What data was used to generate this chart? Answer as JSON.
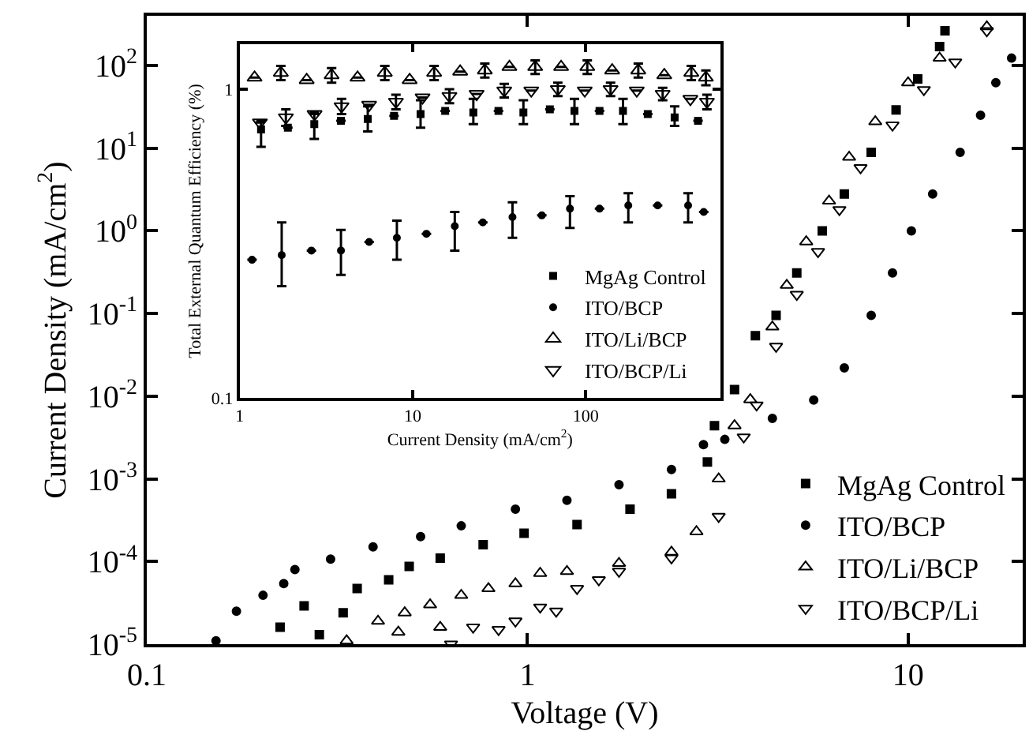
{
  "chart_data": [
    {
      "type": "scatter",
      "xlabel": "Voltage (V)",
      "ylabel": "Current Density (mA/cm$^{2}$)",
      "log": "xy",
      "xlim": [
        0.1,
        20
      ],
      "ylim": [
        1e-05,
        400
      ],
      "xticks": [
        0.1,
        1,
        10
      ],
      "yticks": [
        {
          "value": 1e-05,
          "label": "10$^{-5}$"
        },
        {
          "value": 0.0001,
          "label": "10$^{-4}$"
        },
        {
          "value": 0.001,
          "label": "10$^{-3}$"
        },
        {
          "value": 0.01,
          "label": "10$^{-2}$"
        },
        {
          "value": 0.1,
          "label": "10$^{-1}$"
        },
        {
          "value": 1,
          "label": "10$^{0}$"
        },
        {
          "value": 10,
          "label": "10$^{1}$"
        },
        {
          "value": 100,
          "label": "10$^{2}$"
        }
      ],
      "legend": "bottom right",
      "series": [
        {
          "name": "MgAg Control",
          "color": "#000000",
          "marker": "square",
          "x": [
            0.224,
            0.259,
            0.284,
            0.328,
            0.357,
            0.432,
            0.489,
            0.59,
            0.765,
            0.98,
            1.35,
            1.86,
            2.39,
            2.97,
            3.1,
            3.5,
            3.97,
            4.5,
            5.1,
            5.95,
            6.8,
            8.0,
            9.3,
            10.6,
            12.1,
            12.5
          ],
          "values": [
            1.6e-05,
            2.9e-05,
            1.3e-05,
            2.4e-05,
            4.7e-05,
            6e-05,
            8.7e-05,
            0.00011,
            0.00016,
            0.00022,
            0.00028,
            0.00043,
            0.00066,
            0.0016,
            0.0044,
            0.012,
            0.054,
            0.095,
            0.31,
            1.0,
            2.8,
            8.9,
            29,
            69,
            170,
            263
          ]
        },
        {
          "name": "ITO/BCP",
          "color": "#000000",
          "marker": "circle",
          "x": [
            0.152,
            0.172,
            0.202,
            0.229,
            0.245,
            0.304,
            0.393,
            0.524,
            0.67,
            0.93,
            1.27,
            1.74,
            2.39,
            2.9,
            3.3,
            4.4,
            5.65,
            6.8,
            8.0,
            9.1,
            10.2,
            11.6,
            13.7,
            15.5,
            17.0,
            18.7
          ],
          "values": [
            1.1e-05,
            2.5e-05,
            3.9e-05,
            5.4e-05,
            8e-05,
            0.000107,
            0.00015,
            0.0002,
            0.00027,
            0.00043,
            0.00055,
            0.00085,
            0.0013,
            0.0026,
            0.003,
            0.0054,
            0.009,
            0.022,
            0.095,
            0.31,
            1.0,
            2.8,
            8.9,
            25,
            62,
            123
          ]
        },
        {
          "name": "ITO/Li/BCP",
          "color": "#000000",
          "marker": "triangle",
          "x": [
            0.335,
            0.405,
            0.458,
            0.476,
            0.555,
            0.59,
            0.67,
            0.79,
            0.93,
            1.08,
            1.27,
            1.74,
            2.39,
            2.78,
            3.18,
            3.5,
            3.85,
            4.4,
            4.8,
            5.4,
            6.2,
            7.0,
            8.2,
            10.0,
            12.1,
            16.1
          ],
          "values": [
            1.1e-05,
            1.9e-05,
            1.4e-05,
            2.4e-05,
            3e-05,
            1.6e-05,
            3.9e-05,
            4.7e-05,
            5.4e-05,
            7.2e-05,
            7.6e-05,
            9.5e-05,
            0.00013,
            0.00023,
            0.001,
            0.0044,
            0.0091,
            0.069,
            0.22,
            0.74,
            2.3,
            7.8,
            21,
            62,
            123,
            295
          ]
        },
        {
          "name": "ITO/BCP/Li",
          "color": "#000000",
          "marker": "triangle-down",
          "x": [
            0.63,
            0.72,
            0.84,
            0.93,
            1.08,
            1.19,
            1.35,
            1.54,
            1.74,
            2.39,
            3.18,
            3.7,
            4.0,
            4.5,
            5.1,
            5.8,
            6.6,
            7.5,
            9.1,
            11.0,
            13.3,
            16.1
          ],
          "values": [
            1e-05,
            1.6e-05,
            1.5e-05,
            1.9e-05,
            2.8e-05,
            2.5e-05,
            4.7e-05,
            6e-05,
            7.6e-05,
            0.00011,
            0.00035,
            0.0032,
            0.0078,
            0.04,
            0.17,
            0.56,
            1.8,
            5.8,
            19,
            51,
            110,
            263
          ]
        }
      ]
    },
    {
      "type": "scatter",
      "xlabel": "Current Density (mA/cm$^{2}$)",
      "ylabel": "Total External Quantum Efficiency (%)",
      "log": "xy",
      "xlim": [
        1,
        600
      ],
      "ylim": [
        0.1,
        1.4
      ],
      "xticks": [
        1,
        10,
        100
      ],
      "yticks": [
        0.1,
        1
      ],
      "legend": "bottom right",
      "series": [
        {
          "name": "MgAg Control",
          "color": "#000000",
          "marker": "square",
          "x": [
            1.33,
            1.9,
            2.7,
            3.85,
            5.5,
            7.8,
            11.1,
            15.4,
            22.4,
            31.3,
            43.6,
            62,
            86,
            120,
            164,
            228,
            326,
            445
          ],
          "values": [
            0.74,
            0.75,
            0.77,
            0.79,
            0.8,
            0.82,
            0.83,
            0.85,
            0.84,
            0.85,
            0.84,
            0.86,
            0.85,
            0.85,
            0.85,
            0.83,
            0.81,
            0.79
          ],
          "errors": [
            [
              0.65,
              0.79
            ],
            null,
            [
              0.69,
              0.84
            ],
            null,
            [
              0.73,
              0.88
            ],
            null,
            [
              0.75,
              0.92
            ],
            null,
            [
              0.77,
              0.93
            ],
            null,
            [
              0.77,
              0.92
            ],
            null,
            [
              0.77,
              0.93
            ],
            null,
            [
              0.77,
              0.93
            ],
            null,
            [
              0.76,
              0.88
            ],
            null
          ]
        },
        {
          "name": "ITO/BCP",
          "color": "#000000",
          "marker": "circle",
          "x": [
            1.18,
            1.75,
            2.6,
            3.85,
            5.6,
            8.1,
            12.0,
            17.5,
            25.4,
            37.7,
            55.7,
            81,
            120,
            176,
            260,
            390,
            480
          ],
          "values": [
            0.28,
            0.29,
            0.3,
            0.3,
            0.32,
            0.33,
            0.34,
            0.36,
            0.37,
            0.385,
            0.39,
            0.41,
            0.41,
            0.42,
            0.42,
            0.42,
            0.4
          ],
          "errors": [
            null,
            [
              0.23,
              0.37
            ],
            null,
            [
              0.25,
              0.35
            ],
            null,
            [
              0.28,
              0.375
            ],
            null,
            [
              0.3,
              0.4
            ],
            null,
            [
              0.33,
              0.43
            ],
            null,
            [
              0.355,
              0.45
            ],
            null,
            [
              0.37,
              0.46
            ],
            null,
            [
              0.37,
              0.46
            ],
            null
          ]
        },
        {
          "name": "ITO/Li/BCP",
          "color": "#000000",
          "marker": "triangle",
          "x": [
            1.22,
            1.73,
            2.44,
            3.4,
            4.8,
            6.9,
            9.6,
            13.3,
            18.8,
            26.1,
            36.2,
            51,
            72,
            102,
            142,
            201,
            284,
            407,
            494
          ],
          "values": [
            1.09,
            1.13,
            1.07,
            1.11,
            1.09,
            1.13,
            1.07,
            1.13,
            1.14,
            1.15,
            1.18,
            1.18,
            1.18,
            1.18,
            1.15,
            1.15,
            1.11,
            1.13,
            1.09
          ],
          "errors": [
            null,
            [
              1.07,
              1.19
            ],
            null,
            [
              1.05,
              1.17
            ],
            null,
            [
              1.07,
              1.19
            ],
            null,
            [
              1.07,
              1.19
            ],
            null,
            [
              1.09,
              1.21
            ],
            null,
            [
              1.12,
              1.24
            ],
            null,
            [
              1.12,
              1.24
            ],
            null,
            [
              1.09,
              1.21
            ],
            null,
            [
              1.07,
              1.19
            ],
            [
              1.03,
              1.15
            ]
          ]
        },
        {
          "name": "ITO/BCP/Li",
          "color": "#000000",
          "marker": "triangle-down",
          "x": [
            1.31,
            1.85,
            2.71,
            3.88,
            5.6,
            8.0,
            11.4,
            16.3,
            23.4,
            33.8,
            48.4,
            68.9,
            98.6,
            139,
            197,
            278,
            402,
            501
          ],
          "values": [
            0.78,
            0.81,
            0.83,
            0.88,
            0.89,
            0.91,
            0.94,
            0.95,
            0.965,
            0.99,
            0.99,
            1.0,
            0.99,
            1.0,
            0.99,
            0.965,
            0.93,
            0.91
          ],
          "errors": [
            null,
            [
              0.76,
              0.86
            ],
            null,
            [
              0.83,
              0.93
            ],
            null,
            [
              0.86,
              0.96
            ],
            null,
            [
              0.9,
              1.0
            ],
            null,
            [
              0.94,
              1.04
            ],
            null,
            [
              0.95,
              1.05
            ],
            null,
            [
              0.95,
              1.05
            ],
            null,
            [
              0.92,
              1.01
            ],
            null,
            [
              0.86,
              0.96
            ]
          ]
        }
      ]
    }
  ]
}
